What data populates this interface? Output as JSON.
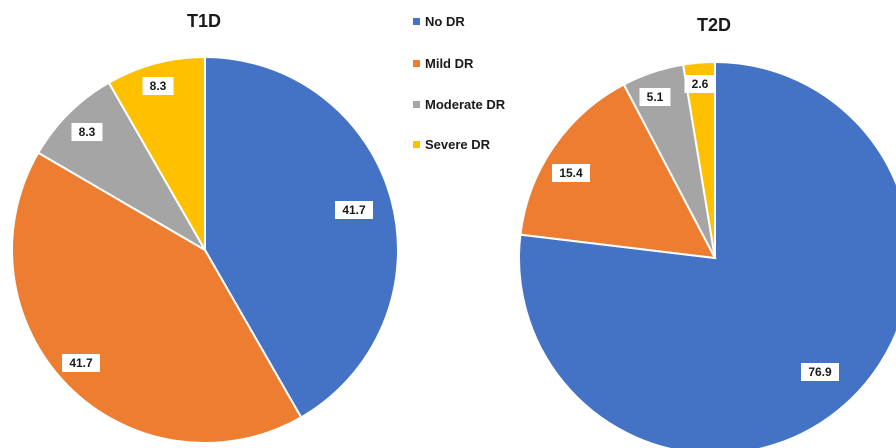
{
  "colors": {
    "no_dr": "#4472C4",
    "mild_dr": "#ED7D31",
    "moderate_dr": "#A5A5A5",
    "severe_dr": "#FFC000"
  },
  "legend": [
    {
      "label": "No DR",
      "color": "#4472C4"
    },
    {
      "label": "Mild DR",
      "color": "#ED7D31"
    },
    {
      "label": "Moderate DR",
      "color": "#A5A5A5"
    },
    {
      "label": "Severe DR",
      "color": "#FFC000"
    }
  ],
  "chart_data": [
    {
      "type": "pie",
      "title": "T1D",
      "categories": [
        "No DR",
        "Mild DR",
        "Moderate DR",
        "Severe DR"
      ],
      "values": [
        41.7,
        41.7,
        8.3,
        8.3
      ],
      "data_labels": [
        "41.7",
        "41.7",
        "8.3",
        "8.3"
      ],
      "colors": [
        "#4472C4",
        "#ED7D31",
        "#A5A5A5",
        "#FFC000"
      ],
      "start": "12 o'clock, clockwise"
    },
    {
      "type": "pie",
      "title": "T2D",
      "categories": [
        "No DR",
        "Mild DR",
        "Moderate DR",
        "Severe DR"
      ],
      "values": [
        76.9,
        15.4,
        5.1,
        2.6
      ],
      "data_labels": [
        "76.9",
        "15.4",
        "5.1",
        "2.6"
      ],
      "colors": [
        "#4472C4",
        "#ED7D31",
        "#A5A5A5",
        "#FFC000"
      ],
      "start": "12 o'clock, clockwise"
    }
  ]
}
